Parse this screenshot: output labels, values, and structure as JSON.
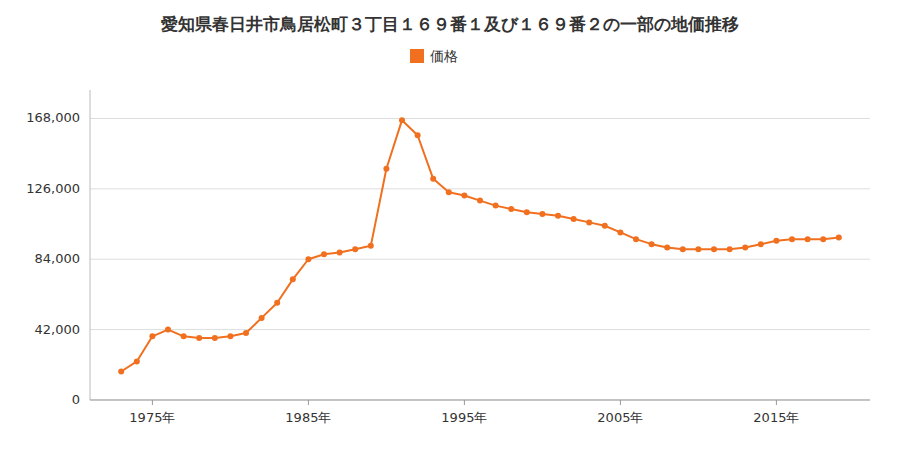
{
  "chart_data": {
    "type": "line",
    "title": "愛知県春日井市鳥居松町３丁目１６９番１及び１６９番２の一部の地価推移",
    "x": [
      1973,
      1974,
      1975,
      1976,
      1977,
      1978,
      1979,
      1980,
      1981,
      1982,
      1983,
      1984,
      1985,
      1986,
      1987,
      1988,
      1989,
      1990,
      1991,
      1992,
      1993,
      1994,
      1995,
      1996,
      1997,
      1998,
      1999,
      2000,
      2001,
      2002,
      2003,
      2004,
      2005,
      2006,
      2007,
      2008,
      2009,
      2010,
      2011,
      2012,
      2013,
      2014,
      2015,
      2016,
      2017,
      2018,
      2019
    ],
    "series": [
      {
        "name": "価格",
        "color": "#f07020",
        "marker": "circle",
        "values": [
          17000,
          23000,
          38000,
          42000,
          38000,
          37000,
          37000,
          38000,
          40000,
          49000,
          58000,
          72000,
          84000,
          87000,
          88000,
          90000,
          92000,
          138000,
          167000,
          158000,
          132000,
          124000,
          122000,
          119000,
          116000,
          114000,
          112000,
          111000,
          110000,
          108000,
          106000,
          104000,
          100000,
          96000,
          93000,
          91000,
          90000,
          90000,
          90000,
          90000,
          91000,
          93000,
          95000,
          96000,
          96000,
          96000,
          97000
        ]
      }
    ],
    "xlim": [
      1971,
      2021
    ],
    "xticks": [
      {
        "value": 1975,
        "label": "1975年"
      },
      {
        "value": 1985,
        "label": "1985年"
      },
      {
        "value": 1995,
        "label": "1995年"
      },
      {
        "value": 2005,
        "label": "2005年"
      },
      {
        "value": 2015,
        "label": "2015年"
      }
    ],
    "ylim": [
      0,
      185000
    ],
    "yticks": [
      0,
      {
        "value": 42000,
        "label": "42,000"
      },
      {
        "value": 84000,
        "label": "84,000"
      },
      {
        "value": 126000,
        "label": "126,000"
      },
      {
        "value": 168000,
        "label": "168,000"
      }
    ],
    "grid": true,
    "legend": "top"
  }
}
